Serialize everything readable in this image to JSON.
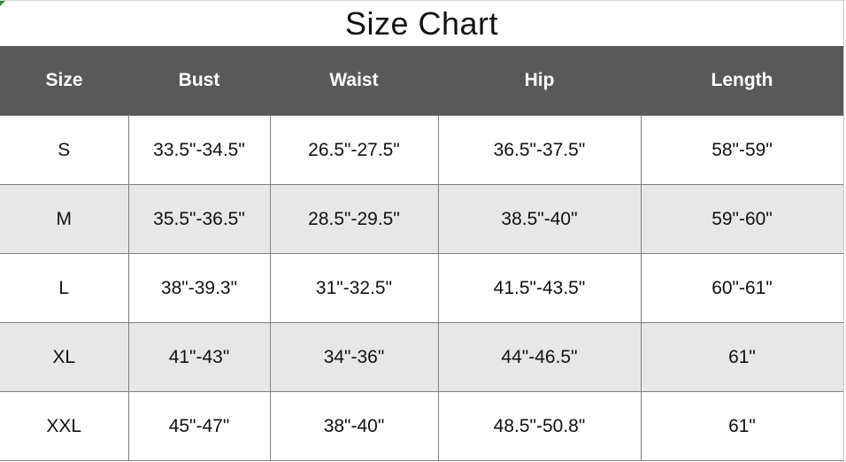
{
  "title": "Size Chart",
  "columns": [
    "Size",
    "Bust",
    "Waist",
    "Hip",
    "Length"
  ],
  "rows": [
    [
      "S",
      "33.5\"-34.5\"",
      "26.5\"-27.5\"",
      "36.5\"-37.5\"",
      "58\"-59\""
    ],
    [
      "M",
      "35.5\"-36.5\"",
      "28.5\"-29.5\"",
      "38.5\"-40\"",
      "59\"-60\""
    ],
    [
      "L",
      "38\"-39.3\"",
      "31\"-32.5\"",
      "41.5\"-43.5\"",
      "60\"-61\""
    ],
    [
      "XL",
      "41\"-43\"",
      "34\"-36\"",
      "44\"-46.5\"",
      "61\""
    ],
    [
      "XXL",
      "45\"-47\"",
      "38\"-40\"",
      "48.5\"-50.8\"",
      "61\""
    ]
  ],
  "colors": {
    "header_bg": "#595959",
    "header_text": "#ffffff",
    "alt_row_bg": "#e7e7e7",
    "border": "#7f7f7f",
    "corner_accent": "#2e8b3e"
  }
}
